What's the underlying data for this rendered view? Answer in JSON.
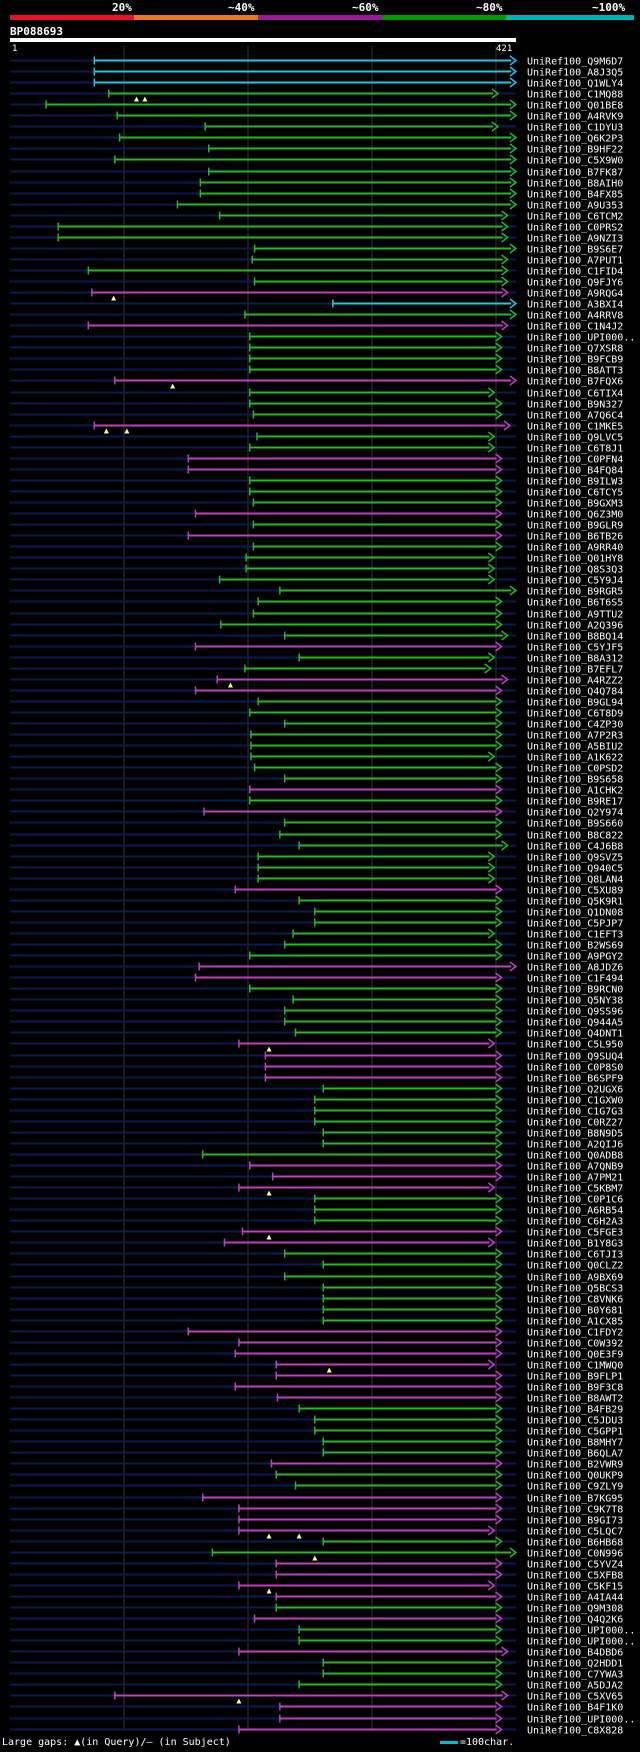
{
  "header": {
    "pct_labels": [
      "20%",
      "~40%",
      "~60%",
      "~80%",
      "~100%"
    ],
    "color_scale": [
      "#e8102a",
      "#e87722",
      "#9a1a9a",
      "#009900",
      "#00b3b3"
    ],
    "query_name": "BP088693",
    "query_start": "1",
    "query_end": "421"
  },
  "footer": {
    "gaps_text": "Large gaps: ▲(in Query)/– (in Subject)",
    "scale_text": "=100char."
  },
  "chart_data": {
    "type": "alignment",
    "query_length": 421,
    "colors": {
      "cyan": "#1ec8e0",
      "green": "#22bb22",
      "magenta": "#c040c0",
      "axis": "#0c1a55"
    },
    "hits": [
      {
        "n": "UniRef100_Q9M6D7",
        "s": 71,
        "e": 421,
        "c": "cyan",
        "t": []
      },
      {
        "n": "UniRef100_A8J3Q5",
        "s": 71,
        "e": 421,
        "c": "cyan",
        "t": []
      },
      {
        "n": "UniRef100_Q1WLY4",
        "s": 71,
        "e": 421,
        "c": "cyan",
        "t": []
      },
      {
        "n": "UniRef100_C1MQ88",
        "s": 83,
        "e": 406,
        "c": "green",
        "t": [
          106,
          113
        ]
      },
      {
        "n": "UniRef100_Q01BE8",
        "s": 31,
        "e": 421,
        "c": "green",
        "t": []
      },
      {
        "n": "UniRef100_A4RVK9",
        "s": 90,
        "e": 421,
        "c": "green",
        "t": []
      },
      {
        "n": "UniRef100_C1DYU3",
        "s": 163,
        "e": 406,
        "c": "green",
        "t": []
      },
      {
        "n": "UniRef100_Q6K2P3",
        "s": 92,
        "e": 421,
        "c": "green",
        "t": []
      },
      {
        "n": "UniRef100_B9HF22",
        "s": 166,
        "e": 421,
        "c": "green",
        "t": []
      },
      {
        "n": "UniRef100_C5X9W0",
        "s": 88,
        "e": 421,
        "c": "green",
        "t": []
      },
      {
        "n": "UniRef100_B7FK87",
        "s": 166,
        "e": 421,
        "c": "green",
        "t": []
      },
      {
        "n": "UniRef100_B8AIH0",
        "s": 159,
        "e": 421,
        "c": "green",
        "t": []
      },
      {
        "n": "UniRef100_B4FX85",
        "s": 159,
        "e": 421,
        "c": "green",
        "t": []
      },
      {
        "n": "UniRef100_A9U353",
        "s": 140,
        "e": 421,
        "c": "green",
        "t": []
      },
      {
        "n": "UniRef100_C6TCM2",
        "s": 175,
        "e": 414,
        "c": "green",
        "t": []
      },
      {
        "n": "UniRef100_C0PRS2",
        "s": 41,
        "e": 414,
        "c": "green",
        "t": []
      },
      {
        "n": "UniRef100_A9NZI3",
        "s": 41,
        "e": 414,
        "c": "green",
        "t": []
      },
      {
        "n": "UniRef100_B9S6E7",
        "s": 204,
        "e": 421,
        "c": "green",
        "t": []
      },
      {
        "n": "UniRef100_A7PUT1",
        "s": 202,
        "e": 414,
        "c": "green",
        "t": []
      },
      {
        "n": "UniRef100_C1FID4",
        "s": 66,
        "e": 414,
        "c": "green",
        "t": []
      },
      {
        "n": "UniRef100_Q9FJY6",
        "s": 204,
        "e": 414,
        "c": "green",
        "t": []
      },
      {
        "n": "UniRef100_A9RQG4",
        "s": 69,
        "e": 414,
        "c": "magenta",
        "t": [
          87
        ]
      },
      {
        "n": "UniRef100_A3BXI4",
        "s": 269,
        "e": 421,
        "c": "cyan",
        "t": []
      },
      {
        "n": "UniRef100_A4RRV8",
        "s": 196,
        "e": 421,
        "c": "green",
        "t": []
      },
      {
        "n": "UniRef100_C1N4J2",
        "s": 66,
        "e": 414,
        "c": "magenta",
        "t": []
      },
      {
        "n": "UniRef100_UPI000..",
        "s": 200,
        "e": 409,
        "c": "green",
        "t": []
      },
      {
        "n": "UniRef100_Q7XSR8",
        "s": 200,
        "e": 409,
        "c": "green",
        "t": []
      },
      {
        "n": "UniRef100_B9FCB9",
        "s": 200,
        "e": 409,
        "c": "green",
        "t": []
      },
      {
        "n": "UniRef100_B8ATT3",
        "s": 200,
        "e": 409,
        "c": "green",
        "t": []
      },
      {
        "n": "UniRef100_B7FQX6",
        "s": 88,
        "e": 421,
        "c": "magenta",
        "t": [
          136
        ]
      },
      {
        "n": "UniRef100_C6TIX4",
        "s": 200,
        "e": 403,
        "c": "green",
        "t": []
      },
      {
        "n": "UniRef100_B9N327",
        "s": 200,
        "e": 409,
        "c": "green",
        "t": []
      },
      {
        "n": "UniRef100_A7Q6C4",
        "s": 203,
        "e": 409,
        "c": "green",
        "t": []
      },
      {
        "n": "UniRef100_C1MKE5",
        "s": 71,
        "e": 416,
        "c": "magenta",
        "t": [
          81,
          98
        ]
      },
      {
        "n": "UniRef100_Q9LVC5",
        "s": 206,
        "e": 403,
        "c": "green",
        "t": []
      },
      {
        "n": "UniRef100_C6T8J1",
        "s": 200,
        "e": 403,
        "c": "green",
        "t": []
      },
      {
        "n": "UniRef100_C0PFN4",
        "s": 149,
        "e": 409,
        "c": "magenta",
        "t": []
      },
      {
        "n": "UniRef100_B4FQ84",
        "s": 149,
        "e": 409,
        "c": "magenta",
        "t": []
      },
      {
        "n": "UniRef100_B9ILW3",
        "s": 200,
        "e": 409,
        "c": "green",
        "t": []
      },
      {
        "n": "UniRef100_C6TCY5",
        "s": 200,
        "e": 409,
        "c": "green",
        "t": []
      },
      {
        "n": "UniRef100_B9GXM3",
        "s": 203,
        "e": 409,
        "c": "green",
        "t": []
      },
      {
        "n": "UniRef100_Q6Z3M0",
        "s": 155,
        "e": 409,
        "c": "magenta",
        "t": []
      },
      {
        "n": "UniRef100_B9GLR9",
        "s": 203,
        "e": 409,
        "c": "green",
        "t": []
      },
      {
        "n": "UniRef100_B6TB26",
        "s": 149,
        "e": 409,
        "c": "magenta",
        "t": []
      },
      {
        "n": "UniRef100_A9RR40",
        "s": 203,
        "e": 409,
        "c": "green",
        "t": []
      },
      {
        "n": "UniRef100_Q01HY8",
        "s": 197,
        "e": 403,
        "c": "green",
        "t": []
      },
      {
        "n": "UniRef100_Q8S3Q3",
        "s": 197,
        "e": 403,
        "c": "green",
        "t": []
      },
      {
        "n": "UniRef100_C5Y9J4",
        "s": 175,
        "e": 403,
        "c": "green",
        "t": []
      },
      {
        "n": "UniRef100_B9RGR5",
        "s": 225,
        "e": 421,
        "c": "green",
        "t": []
      },
      {
        "n": "UniRef100_B6T6S5",
        "s": 207,
        "e": 409,
        "c": "green",
        "t": []
      },
      {
        "n": "UniRef100_A9TTU2",
        "s": 203,
        "e": 409,
        "c": "green",
        "t": []
      },
      {
        "n": "UniRef100_A2Q396",
        "s": 176,
        "e": 409,
        "c": "green",
        "t": []
      },
      {
        "n": "UniRef100_B8BQ14",
        "s": 229,
        "e": 414,
        "c": "green",
        "t": []
      },
      {
        "n": "UniRef100_C5YJF5",
        "s": 155,
        "e": 409,
        "c": "magenta",
        "t": []
      },
      {
        "n": "UniRef100_B8A312",
        "s": 241,
        "e": 403,
        "c": "green",
        "t": []
      },
      {
        "n": "UniRef100_B7EFL7",
        "s": 196,
        "e": 400,
        "c": "green",
        "t": []
      },
      {
        "n": "UniRef100_A4RZZ2",
        "s": 173,
        "e": 414,
        "c": "magenta",
        "t": [
          184
        ]
      },
      {
        "n": "UniRef100_Q4Q784",
        "s": 155,
        "e": 409,
        "c": "magenta",
        "t": []
      },
      {
        "n": "UniRef100_B9GL94",
        "s": 207,
        "e": 409,
        "c": "green",
        "t": []
      },
      {
        "n": "UniRef100_C6T8D9",
        "s": 200,
        "e": 409,
        "c": "green",
        "t": []
      },
      {
        "n": "UniRef100_C4ZP30",
        "s": 229,
        "e": 409,
        "c": "green",
        "t": []
      },
      {
        "n": "UniRef100_A7P2R3",
        "s": 201,
        "e": 409,
        "c": "green",
        "t": []
      },
      {
        "n": "UniRef100_A5BIU2",
        "s": 201,
        "e": 409,
        "c": "green",
        "t": []
      },
      {
        "n": "UniRef100_A1K622",
        "s": 201,
        "e": 403,
        "c": "green",
        "t": []
      },
      {
        "n": "UniRef100_C0PSD2",
        "s": 204,
        "e": 409,
        "c": "green",
        "t": []
      },
      {
        "n": "UniRef100_B9S658",
        "s": 229,
        "e": 409,
        "c": "green",
        "t": []
      },
      {
        "n": "UniRef100_A1CHK2",
        "s": 200,
        "e": 409,
        "c": "magenta",
        "t": []
      },
      {
        "n": "UniRef100_B9RE17",
        "s": 200,
        "e": 409,
        "c": "green",
        "t": []
      },
      {
        "n": "UniRef100_Q2Y974",
        "s": 162,
        "e": 409,
        "c": "magenta",
        "t": []
      },
      {
        "n": "UniRef100_B9S660",
        "s": 229,
        "e": 409,
        "c": "green",
        "t": []
      },
      {
        "n": "UniRef100_B8C822",
        "s": 225,
        "e": 409,
        "c": "green",
        "t": []
      },
      {
        "n": "UniRef100_C4J6B8",
        "s": 241,
        "e": 414,
        "c": "green",
        "t": []
      },
      {
        "n": "UniRef100_Q9SVZ5",
        "s": 207,
        "e": 403,
        "c": "green",
        "t": []
      },
      {
        "n": "UniRef100_Q940C5",
        "s": 207,
        "e": 403,
        "c": "green",
        "t": []
      },
      {
        "n": "UniRef100_Q8LAN4",
        "s": 207,
        "e": 403,
        "c": "green",
        "t": []
      },
      {
        "n": "UniRef100_C5XU89",
        "s": 188,
        "e": 409,
        "c": "magenta",
        "t": []
      },
      {
        "n": "UniRef100_Q5K9R1",
        "s": 241,
        "e": 409,
        "c": "green",
        "t": []
      },
      {
        "n": "UniRef100_Q1DN08",
        "s": 254,
        "e": 409,
        "c": "green",
        "t": []
      },
      {
        "n": "UniRef100_C5PJP7",
        "s": 254,
        "e": 409,
        "c": "green",
        "t": []
      },
      {
        "n": "UniRef100_C1EFT3",
        "s": 236,
        "e": 403,
        "c": "green",
        "t": []
      },
      {
        "n": "UniRef100_B2WS69",
        "s": 229,
        "e": 409,
        "c": "green",
        "t": []
      },
      {
        "n": "UniRef100_A9PGY2",
        "s": 200,
        "e": 409,
        "c": "green",
        "t": []
      },
      {
        "n": "UniRef100_A8JDZ6",
        "s": 158,
        "e": 421,
        "c": "magenta",
        "t": []
      },
      {
        "n": "UniRef100_C1F494",
        "s": 155,
        "e": 409,
        "c": "magenta",
        "t": []
      },
      {
        "n": "UniRef100_B9RCN0",
        "s": 200,
        "e": 409,
        "c": "green",
        "t": []
      },
      {
        "n": "UniRef100_Q5NY38",
        "s": 236,
        "e": 409,
        "c": "green",
        "t": []
      },
      {
        "n": "UniRef100_Q9SS96",
        "s": 229,
        "e": 409,
        "c": "green",
        "t": []
      },
      {
        "n": "UniRef100_Q944A5",
        "s": 229,
        "e": 409,
        "c": "green",
        "t": []
      },
      {
        "n": "UniRef100_Q4DNT1",
        "s": 238,
        "e": 409,
        "c": "green",
        "t": []
      },
      {
        "n": "UniRef100_C5L950",
        "s": 191,
        "e": 403,
        "c": "magenta",
        "t": [
          216
        ]
      },
      {
        "n": "UniRef100_Q9SUQ4",
        "s": 213,
        "e": 409,
        "c": "magenta",
        "t": []
      },
      {
        "n": "UniRef100_C0P8S0",
        "s": 213,
        "e": 409,
        "c": "magenta",
        "t": []
      },
      {
        "n": "UniRef100_B6SPF9",
        "s": 213,
        "e": 409,
        "c": "magenta",
        "t": []
      },
      {
        "n": "UniRef100_Q2UGX6",
        "s": 261,
        "e": 409,
        "c": "green",
        "t": []
      },
      {
        "n": "UniRef100_C1GXW0",
        "s": 254,
        "e": 409,
        "c": "green",
        "t": []
      },
      {
        "n": "UniRef100_C1G7G3",
        "s": 254,
        "e": 409,
        "c": "green",
        "t": []
      },
      {
        "n": "UniRef100_C0RZ27",
        "s": 254,
        "e": 409,
        "c": "green",
        "t": []
      },
      {
        "n": "UniRef100_B8N9D5",
        "s": 261,
        "e": 409,
        "c": "green",
        "t": []
      },
      {
        "n": "UniRef100_A2QIJ6",
        "s": 261,
        "e": 409,
        "c": "green",
        "t": []
      },
      {
        "n": "UniRef100_Q0ADB8",
        "s": 161,
        "e": 409,
        "c": "green",
        "t": []
      },
      {
        "n": "UniRef100_A7QNB9",
        "s": 200,
        "e": 409,
        "c": "magenta",
        "t": []
      },
      {
        "n": "UniRef100_A7PM21",
        "s": 219,
        "e": 409,
        "c": "magenta",
        "t": []
      },
      {
        "n": "UniRef100_C5KBM7",
        "s": 191,
        "e": 403,
        "c": "magenta",
        "t": [
          216
        ]
      },
      {
        "n": "UniRef100_C0P1C6",
        "s": 254,
        "e": 409,
        "c": "green",
        "t": []
      },
      {
        "n": "UniRef100_A6RB54",
        "s": 254,
        "e": 409,
        "c": "green",
        "t": []
      },
      {
        "n": "UniRef100_C6H2A3",
        "s": 254,
        "e": 409,
        "c": "green",
        "t": []
      },
      {
        "n": "UniRef100_C5FGE3",
        "s": 194,
        "e": 409,
        "c": "magenta",
        "t": [
          216
        ]
      },
      {
        "n": "UniRef100_B1Y8G3",
        "s": 179,
        "e": 403,
        "c": "magenta",
        "t": []
      },
      {
        "n": "UniRef100_C6TJI3",
        "s": 229,
        "e": 409,
        "c": "green",
        "t": []
      },
      {
        "n": "UniRef100_Q0CLZ2",
        "s": 261,
        "e": 409,
        "c": "green",
        "t": []
      },
      {
        "n": "UniRef100_A9BX69",
        "s": 229,
        "e": 409,
        "c": "green",
        "t": []
      },
      {
        "n": "UniRef100_Q5BCS3",
        "s": 261,
        "e": 409,
        "c": "green",
        "t": []
      },
      {
        "n": "UniRef100_C8VNK6",
        "s": 261,
        "e": 409,
        "c": "green",
        "t": []
      },
      {
        "n": "UniRef100_B0Y681",
        "s": 261,
        "e": 409,
        "c": "green",
        "t": []
      },
      {
        "n": "UniRef100_A1CX85",
        "s": 261,
        "e": 409,
        "c": "green",
        "t": []
      },
      {
        "n": "UniRef100_C1FDY2",
        "s": 149,
        "e": 409,
        "c": "magenta",
        "t": []
      },
      {
        "n": "UniRef100_C0W392",
        "s": 191,
        "e": 409,
        "c": "magenta",
        "t": []
      },
      {
        "n": "UniRef100_Q0E3F9",
        "s": 188,
        "e": 409,
        "c": "magenta",
        "t": []
      },
      {
        "n": "UniRef100_C1MWQ0",
        "s": 222,
        "e": 403,
        "c": "magenta",
        "t": [
          266
        ]
      },
      {
        "n": "UniRef100_B9FLP1",
        "s": 222,
        "e": 409,
        "c": "magenta",
        "t": []
      },
      {
        "n": "UniRef100_B9F3C8",
        "s": 188,
        "e": 409,
        "c": "magenta",
        "t": []
      },
      {
        "n": "UniRef100_B8AWT2",
        "s": 223,
        "e": 409,
        "c": "magenta",
        "t": []
      },
      {
        "n": "UniRef100_B4FB29",
        "s": 241,
        "e": 409,
        "c": "green",
        "t": []
      },
      {
        "n": "UniRef100_C5JDU3",
        "s": 254,
        "e": 409,
        "c": "green",
        "t": []
      },
      {
        "n": "UniRef100_C5GPP1",
        "s": 254,
        "e": 409,
        "c": "green",
        "t": []
      },
      {
        "n": "UniRef100_B8MHY7",
        "s": 261,
        "e": 409,
        "c": "green",
        "t": []
      },
      {
        "n": "UniRef100_B6QLA7",
        "s": 261,
        "e": 409,
        "c": "green",
        "t": []
      },
      {
        "n": "UniRef100_B2VWR9",
        "s": 218,
        "e": 409,
        "c": "magenta",
        "t": []
      },
      {
        "n": "UniRef100_Q0UKP9",
        "s": 222,
        "e": 409,
        "c": "green",
        "t": []
      },
      {
        "n": "UniRef100_C9ZLY9",
        "s": 238,
        "e": 409,
        "c": "green",
        "t": []
      },
      {
        "n": "UniRef100_B7KG95",
        "s": 161,
        "e": 409,
        "c": "magenta",
        "t": []
      },
      {
        "n": "UniRef100_C9K7T8",
        "s": 191,
        "e": 409,
        "c": "magenta",
        "t": []
      },
      {
        "n": "UniRef100_B9GI73",
        "s": 191,
        "e": 409,
        "c": "magenta",
        "t": []
      },
      {
        "n": "UniRef100_C5LQC7",
        "s": 191,
        "e": 403,
        "c": "magenta",
        "t": [
          216,
          241
        ]
      },
      {
        "n": "UniRef100_B6HB68",
        "s": 261,
        "e": 409,
        "c": "green",
        "t": []
      },
      {
        "n": "UniRef100_C0N996",
        "s": 169,
        "e": 421,
        "c": "green",
        "t": [
          254
        ]
      },
      {
        "n": "UniRef100_C5YVZ4",
        "s": 222,
        "e": 409,
        "c": "magenta",
        "t": []
      },
      {
        "n": "UniRef100_C5XFB8",
        "s": 222,
        "e": 409,
        "c": "magenta",
        "t": []
      },
      {
        "n": "UniRef100_C5KF15",
        "s": 191,
        "e": 403,
        "c": "magenta",
        "t": [
          216
        ]
      },
      {
        "n": "UniRef100_A4IA44",
        "s": 222,
        "e": 409,
        "c": "magenta",
        "t": []
      },
      {
        "n": "UniRef100_Q9M308",
        "s": 222,
        "e": 409,
        "c": "green",
        "t": []
      },
      {
        "n": "UniRef100_Q4Q2K6",
        "s": 204,
        "e": 409,
        "c": "magenta",
        "t": []
      },
      {
        "n": "UniRef100_UPI000..",
        "s": 241,
        "e": 409,
        "c": "green",
        "t": []
      },
      {
        "n": "UniRef100_UPI000..",
        "s": 241,
        "e": 409,
        "c": "green",
        "t": []
      },
      {
        "n": "UniRef100_B4DBD6",
        "s": 191,
        "e": 414,
        "c": "magenta",
        "t": []
      },
      {
        "n": "UniRef100_Q2HDD1",
        "s": 261,
        "e": 409,
        "c": "green",
        "t": []
      },
      {
        "n": "UniRef100_C7YWA3",
        "s": 261,
        "e": 409,
        "c": "green",
        "t": []
      },
      {
        "n": "UniRef100_A5DJA2",
        "s": 241,
        "e": 409,
        "c": "green",
        "t": []
      },
      {
        "n": "UniRef100_C5XV65",
        "s": 88,
        "e": 414,
        "c": "magenta",
        "t": [
          191
        ]
      },
      {
        "n": "UniRef100_B4F1K0",
        "s": 225,
        "e": 409,
        "c": "magenta",
        "t": []
      },
      {
        "n": "UniRef100_UPI000..",
        "s": 225,
        "e": 409,
        "c": "magenta",
        "t": []
      },
      {
        "n": "UniRef100_C8X828",
        "s": 191,
        "e": 409,
        "c": "magenta",
        "t": []
      }
    ]
  }
}
